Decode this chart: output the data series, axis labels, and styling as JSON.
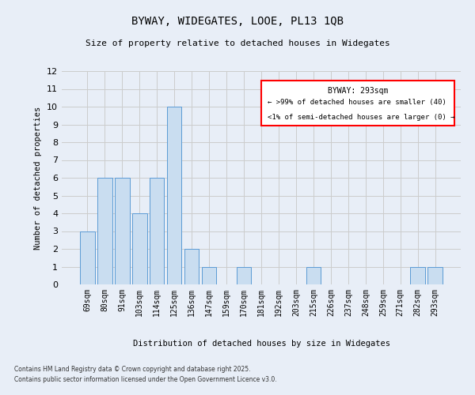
{
  "title1": "BYWAY, WIDEGATES, LOOE, PL13 1QB",
  "title2": "Size of property relative to detached houses in Widegates",
  "xlabel": "Distribution of detached houses by size in Widegates",
  "ylabel": "Number of detached properties",
  "categories": [
    "69sqm",
    "80sqm",
    "91sqm",
    "103sqm",
    "114sqm",
    "125sqm",
    "136sqm",
    "147sqm",
    "159sqm",
    "170sqm",
    "181sqm",
    "192sqm",
    "203sqm",
    "215sqm",
    "226sqm",
    "237sqm",
    "248sqm",
    "259sqm",
    "271sqm",
    "282sqm",
    "293sqm"
  ],
  "values": [
    3,
    6,
    6,
    4,
    6,
    10,
    2,
    1,
    0,
    1,
    0,
    0,
    0,
    1,
    0,
    0,
    0,
    0,
    0,
    1,
    1
  ],
  "bar_color": "#c9ddf0",
  "bar_edge_color": "#5b9bd5",
  "ylim": [
    0,
    12
  ],
  "yticks": [
    0,
    1,
    2,
    3,
    4,
    5,
    6,
    7,
    8,
    9,
    10,
    11,
    12
  ],
  "legend_text1": "BYWAY: 293sqm",
  "legend_text2": "← >99% of detached houses are smaller (40)",
  "legend_text3": "<1% of semi-detached houses are larger (0) →",
  "legend_box_color": "#ff0000",
  "grid_color": "#cccccc",
  "background_color": "#e8eef7",
  "footer1": "Contains HM Land Registry data © Crown copyright and database right 2025.",
  "footer2": "Contains public sector information licensed under the Open Government Licence v3.0."
}
